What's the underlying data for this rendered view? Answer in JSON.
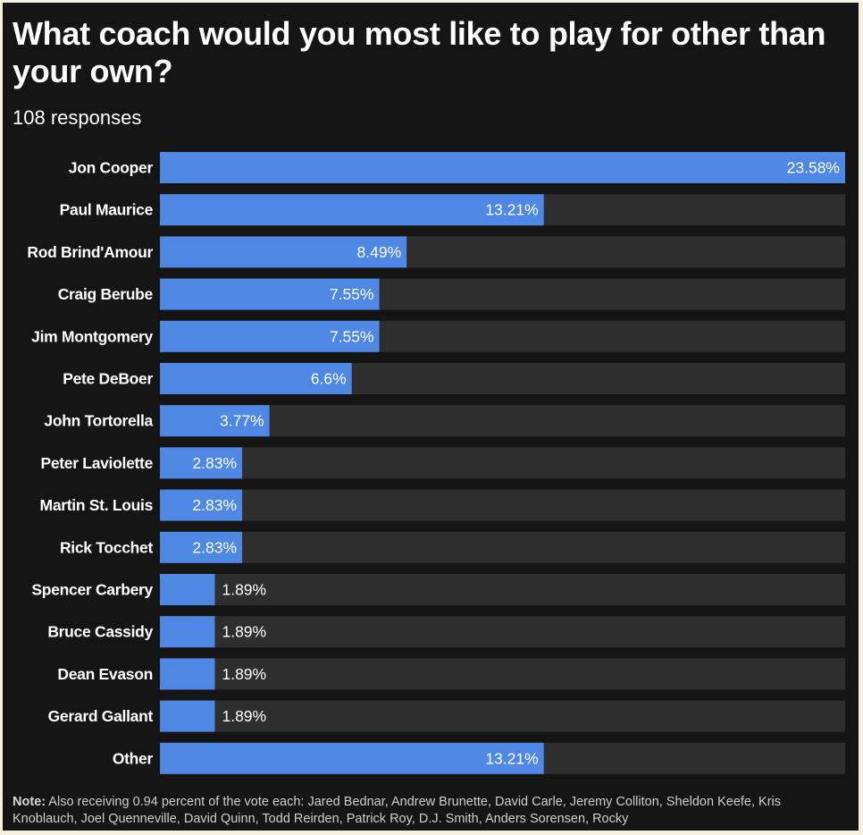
{
  "header": {
    "title": "What coach would you most like to play for other than your own?",
    "subtitle": "108 responses"
  },
  "note": {
    "label": "Note:",
    "text": "Also receiving 0.94 percent of the vote each: Jared Bednar, Andrew Brunette, David Carle, Jeremy Colliton, Sheldon Keefe, Kris Knoblauch, Joel Quenneville, David Quinn, Todd Reirden, Patrick Roy, D.J. Smith, Anders Sorensen, Rocky"
  },
  "colors": {
    "background": "#151515",
    "track": "#2e2e2e",
    "bar": "#4e88e4",
    "text": "#ffffff"
  },
  "chart_data": {
    "type": "bar",
    "orientation": "horizontal",
    "categories": [
      "Jon Cooper",
      "Paul Maurice",
      "Rod Brind'Amour",
      "Craig Berube",
      "Jim Montgomery",
      "Pete DeBoer",
      "John Tortorella",
      "Peter Laviolette",
      "Martin St. Louis",
      "Rick Tocchet",
      "Spencer Carbery",
      "Bruce Cassidy",
      "Dean Evason",
      "Gerard Gallant",
      "Other"
    ],
    "values": [
      23.58,
      13.21,
      8.49,
      7.55,
      7.55,
      6.6,
      3.77,
      2.83,
      2.83,
      2.83,
      1.89,
      1.89,
      1.89,
      1.89,
      13.21
    ],
    "labels": [
      "23.58%",
      "13.21%",
      "8.49%",
      "7.55%",
      "7.55%",
      "6.6%",
      "3.77%",
      "2.83%",
      "2.83%",
      "2.83%",
      "1.89%",
      "1.89%",
      "1.89%",
      "1.89%",
      "13.21%"
    ],
    "xlim": [
      0,
      23.58
    ],
    "grid": false,
    "legend": "none"
  }
}
